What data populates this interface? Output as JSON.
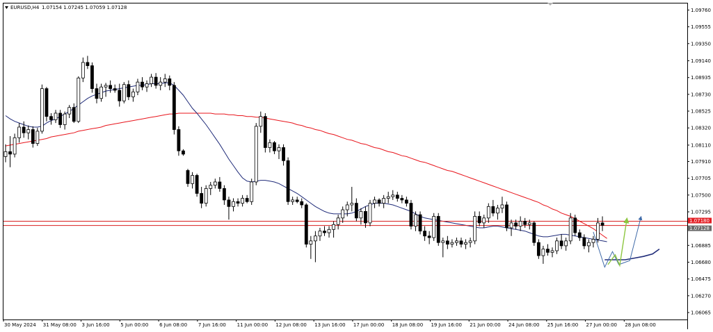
{
  "header": {
    "symbol": "EURUSD,H4",
    "ohlc": "1.07154 1.07245 1.07059 1.07128"
  },
  "colors": {
    "background": "#ffffff",
    "bull_body": "#ffffff",
    "bear_body": "#000000",
    "candle_outline": "#000000",
    "ma_fast": "#1e2a78",
    "ma_slow": "#e8141b",
    "horizontal_line": "#d81e1e",
    "projection_blue": "#3f6aa8",
    "projection_green": "#8dc63f",
    "tag_red": "#e31e24",
    "tag_gray": "#6b6b6b"
  },
  "chart_data": {
    "type": "candlestick",
    "title": "EURUSD,H4",
    "price_axis": {
      "ticks": [
        "1.09760",
        "1.09555",
        "1.09350",
        "1.09140",
        "1.08935",
        "1.08730",
        "1.08525",
        "1.08320",
        "1.08110",
        "1.07910",
        "1.07705",
        "1.07500",
        "1.07295",
        "1.07090",
        "1.06885",
        "1.06680",
        "1.06475",
        "1.06270",
        "1.06065"
      ],
      "range": [
        1.0598,
        1.0984
      ]
    },
    "time_axis": {
      "ticks": [
        "30 May 2024",
        "31 May 08:00",
        "3 Jun 16:00",
        "5 Jun 00:00",
        "6 Jun 08:00",
        "7 Jun 16:00",
        "11 Jun 00:00",
        "12 Jun 08:00",
        "13 Jun 16:00",
        "17 Jun 00:00",
        "18 Jun 08:00",
        "19 Jun 16:00",
        "21 Jun 00:00",
        "24 Jun 08:00",
        "25 Jun 16:00",
        "27 Jun 00:00",
        "28 Jun 08:00"
      ]
    },
    "price_tags": [
      {
        "value": "1.07180",
        "style": "red"
      },
      {
        "value": "1.07128",
        "style": "gray"
      }
    ],
    "horizontal_lines": [
      1.0718,
      1.07128
    ],
    "candles": [
      {
        "o": 1.0797,
        "h": 1.0812,
        "l": 1.079,
        "c": 1.0803
      },
      {
        "o": 1.0803,
        "h": 1.0822,
        "l": 1.0784,
        "c": 1.08
      },
      {
        "o": 1.08,
        "h": 1.0825,
        "l": 1.0796,
        "c": 1.082
      },
      {
        "o": 1.082,
        "h": 1.0838,
        "l": 1.0814,
        "c": 1.0833
      },
      {
        "o": 1.0833,
        "h": 1.084,
        "l": 1.082,
        "c": 1.0826
      },
      {
        "o": 1.0826,
        "h": 1.0835,
        "l": 1.0818,
        "c": 1.083
      },
      {
        "o": 1.083,
        "h": 1.0834,
        "l": 1.0808,
        "c": 1.0813
      },
      {
        "o": 1.0813,
        "h": 1.0832,
        "l": 1.081,
        "c": 1.0828
      },
      {
        "o": 1.0828,
        "h": 1.0885,
        "l": 1.0825,
        "c": 1.088
      },
      {
        "o": 1.088,
        "h": 1.0882,
        "l": 1.084,
        "c": 1.0846
      },
      {
        "o": 1.0846,
        "h": 1.085,
        "l": 1.0836,
        "c": 1.0842
      },
      {
        "o": 1.0842,
        "h": 1.0854,
        "l": 1.0838,
        "c": 1.085
      },
      {
        "o": 1.085,
        "h": 1.0854,
        "l": 1.0832,
        "c": 1.0836
      },
      {
        "o": 1.0836,
        "h": 1.0852,
        "l": 1.083,
        "c": 1.0849
      },
      {
        "o": 1.0849,
        "h": 1.086,
        "l": 1.0844,
        "c": 1.0857
      },
      {
        "o": 1.0857,
        "h": 1.0862,
        "l": 1.0838,
        "c": 1.084
      },
      {
        "o": 1.084,
        "h": 1.0895,
        "l": 1.0838,
        "c": 1.0893
      },
      {
        "o": 1.0893,
        "h": 1.0918,
        "l": 1.0888,
        "c": 1.0912
      },
      {
        "o": 1.0912,
        "h": 1.092,
        "l": 1.0904,
        "c": 1.0908
      },
      {
        "o": 1.0908,
        "h": 1.0912,
        "l": 1.0875,
        "c": 1.088
      },
      {
        "o": 1.088,
        "h": 1.0886,
        "l": 1.0862,
        "c": 1.0868
      },
      {
        "o": 1.0868,
        "h": 1.0886,
        "l": 1.0864,
        "c": 1.0882
      },
      {
        "o": 1.0882,
        "h": 1.0887,
        "l": 1.087,
        "c": 1.0884
      },
      {
        "o": 1.0884,
        "h": 1.089,
        "l": 1.0875,
        "c": 1.088
      },
      {
        "o": 1.088,
        "h": 1.0885,
        "l": 1.0875,
        "c": 1.0878
      },
      {
        "o": 1.0878,
        "h": 1.0886,
        "l": 1.0858,
        "c": 1.0865
      },
      {
        "o": 1.0865,
        "h": 1.0888,
        "l": 1.0862,
        "c": 1.0885
      },
      {
        "o": 1.0885,
        "h": 1.089,
        "l": 1.0866,
        "c": 1.087
      },
      {
        "o": 1.087,
        "h": 1.088,
        "l": 1.0864,
        "c": 1.0876
      },
      {
        "o": 1.0876,
        "h": 1.0892,
        "l": 1.0872,
        "c": 1.0888
      },
      {
        "o": 1.0888,
        "h": 1.0894,
        "l": 1.0878,
        "c": 1.0882
      },
      {
        "o": 1.0882,
        "h": 1.089,
        "l": 1.0876,
        "c": 1.0886
      },
      {
        "o": 1.0886,
        "h": 1.0898,
        "l": 1.0882,
        "c": 1.0894
      },
      {
        "o": 1.0894,
        "h": 1.0899,
        "l": 1.088,
        "c": 1.0884
      },
      {
        "o": 1.0884,
        "h": 1.0894,
        "l": 1.0878,
        "c": 1.0888
      },
      {
        "o": 1.0888,
        "h": 1.0898,
        "l": 1.0882,
        "c": 1.0892
      },
      {
        "o": 1.0892,
        "h": 1.0896,
        "l": 1.0878,
        "c": 1.0884
      },
      {
        "o": 1.0884,
        "h": 1.0888,
        "l": 1.0824,
        "c": 1.083
      },
      {
        "o": 1.083,
        "h": 1.0834,
        "l": 1.0798,
        "c": 1.0804
      },
      {
        "o": 1.0804,
        "h": 1.0806,
        "l": 1.0798,
        "c": 1.08
      },
      {
        "o": 1.078,
        "h": 1.0782,
        "l": 1.076,
        "c": 1.0764
      },
      {
        "o": 1.0764,
        "h": 1.0778,
        "l": 1.0758,
        "c": 1.0774
      },
      {
        "o": 1.0774,
        "h": 1.0776,
        "l": 1.0748,
        "c": 1.0752
      },
      {
        "o": 1.0752,
        "h": 1.076,
        "l": 1.0734,
        "c": 1.074
      },
      {
        "o": 1.074,
        "h": 1.0762,
        "l": 1.0736,
        "c": 1.0758
      },
      {
        "o": 1.0758,
        "h": 1.0766,
        "l": 1.075,
        "c": 1.0762
      },
      {
        "o": 1.0762,
        "h": 1.077,
        "l": 1.0758,
        "c": 1.0766
      },
      {
        "o": 1.0766,
        "h": 1.0772,
        "l": 1.0754,
        "c": 1.0758
      },
      {
        "o": 1.0758,
        "h": 1.0762,
        "l": 1.0738,
        "c": 1.0744
      },
      {
        "o": 1.0744,
        "h": 1.0748,
        "l": 1.072,
        "c": 1.0736
      },
      {
        "o": 1.0736,
        "h": 1.0746,
        "l": 1.073,
        "c": 1.0742
      },
      {
        "o": 1.0742,
        "h": 1.0746,
        "l": 1.0736,
        "c": 1.074
      },
      {
        "o": 1.074,
        "h": 1.075,
        "l": 1.0736,
        "c": 1.0746
      },
      {
        "o": 1.0746,
        "h": 1.075,
        "l": 1.074,
        "c": 1.0742
      },
      {
        "o": 1.0742,
        "h": 1.077,
        "l": 1.0738,
        "c": 1.0766
      },
      {
        "o": 1.0766,
        "h": 1.0838,
        "l": 1.0762,
        "c": 1.0834
      },
      {
        "o": 1.0834,
        "h": 1.0852,
        "l": 1.0826,
        "c": 1.0846
      },
      {
        "o": 1.0846,
        "h": 1.085,
        "l": 1.0802,
        "c": 1.0808
      },
      {
        "o": 1.0808,
        "h": 1.0818,
        "l": 1.0802,
        "c": 1.0814
      },
      {
        "o": 1.0814,
        "h": 1.0816,
        "l": 1.08,
        "c": 1.0804
      },
      {
        "o": 1.0804,
        "h": 1.0812,
        "l": 1.0794,
        "c": 1.0808
      },
      {
        "o": 1.0808,
        "h": 1.0812,
        "l": 1.0786,
        "c": 1.0792
      },
      {
        "o": 1.0792,
        "h": 1.0796,
        "l": 1.0738,
        "c": 1.0742
      },
      {
        "o": 1.0742,
        "h": 1.0748,
        "l": 1.0738,
        "c": 1.0744
      },
      {
        "o": 1.0744,
        "h": 1.0748,
        "l": 1.074,
        "c": 1.0742
      },
      {
        "o": 1.0742,
        "h": 1.0746,
        "l": 1.0734,
        "c": 1.0738
      },
      {
        "o": 1.0738,
        "h": 1.074,
        "l": 1.0686,
        "c": 1.069
      },
      {
        "o": 1.069,
        "h": 1.07,
        "l": 1.0672,
        "c": 1.0694
      },
      {
        "o": 1.0694,
        "h": 1.0706,
        "l": 1.0668,
        "c": 1.07
      },
      {
        "o": 1.07,
        "h": 1.071,
        "l": 1.0694,
        "c": 1.0706
      },
      {
        "o": 1.0706,
        "h": 1.0712,
        "l": 1.07,
        "c": 1.0704
      },
      {
        "o": 1.0704,
        "h": 1.0712,
        "l": 1.0698,
        "c": 1.0708
      },
      {
        "o": 1.0708,
        "h": 1.0718,
        "l": 1.0698,
        "c": 1.0714
      },
      {
        "o": 1.0714,
        "h": 1.0726,
        "l": 1.0708,
        "c": 1.0722
      },
      {
        "o": 1.0722,
        "h": 1.0736,
        "l": 1.0716,
        "c": 1.0732
      },
      {
        "o": 1.0732,
        "h": 1.0742,
        "l": 1.0724,
        "c": 1.0738
      },
      {
        "o": 1.0738,
        "h": 1.076,
        "l": 1.073,
        "c": 1.074
      },
      {
        "o": 1.074,
        "h": 1.0746,
        "l": 1.0718,
        "c": 1.0722
      },
      {
        "o": 1.0722,
        "h": 1.0734,
        "l": 1.0714,
        "c": 1.073
      },
      {
        "o": 1.073,
        "h": 1.0736,
        "l": 1.071,
        "c": 1.0716
      },
      {
        "o": 1.0716,
        "h": 1.0744,
        "l": 1.0712,
        "c": 1.074
      },
      {
        "o": 1.074,
        "h": 1.0748,
        "l": 1.0734,
        "c": 1.0744
      },
      {
        "o": 1.0744,
        "h": 1.0746,
        "l": 1.0736,
        "c": 1.074
      },
      {
        "o": 1.074,
        "h": 1.075,
        "l": 1.0734,
        "c": 1.0746
      },
      {
        "o": 1.0746,
        "h": 1.0754,
        "l": 1.074,
        "c": 1.0748
      },
      {
        "o": 1.0748,
        "h": 1.0756,
        "l": 1.0744,
        "c": 1.075
      },
      {
        "o": 1.075,
        "h": 1.0754,
        "l": 1.0742,
        "c": 1.0746
      },
      {
        "o": 1.0746,
        "h": 1.075,
        "l": 1.074,
        "c": 1.0744
      },
      {
        "o": 1.0744,
        "h": 1.0748,
        "l": 1.0736,
        "c": 1.074
      },
      {
        "o": 1.074,
        "h": 1.0744,
        "l": 1.0708,
        "c": 1.0712
      },
      {
        "o": 1.0712,
        "h": 1.073,
        "l": 1.0706,
        "c": 1.0726
      },
      {
        "o": 1.0726,
        "h": 1.073,
        "l": 1.0702,
        "c": 1.0706
      },
      {
        "o": 1.0706,
        "h": 1.0712,
        "l": 1.0694,
        "c": 1.07
      },
      {
        "o": 1.07,
        "h": 1.0706,
        "l": 1.069,
        "c": 1.0698
      },
      {
        "o": 1.0698,
        "h": 1.0728,
        "l": 1.0694,
        "c": 1.0724
      },
      {
        "o": 1.0724,
        "h": 1.0728,
        "l": 1.0688,
        "c": 1.0692
      },
      {
        "o": 1.0692,
        "h": 1.0698,
        "l": 1.0674,
        "c": 1.0694
      },
      {
        "o": 1.0694,
        "h": 1.07,
        "l": 1.0684,
        "c": 1.069
      },
      {
        "o": 1.069,
        "h": 1.0696,
        "l": 1.0686,
        "c": 1.0692
      },
      {
        "o": 1.0692,
        "h": 1.0698,
        "l": 1.0688,
        "c": 1.0694
      },
      {
        "o": 1.0694,
        "h": 1.0698,
        "l": 1.0686,
        "c": 1.069
      },
      {
        "o": 1.069,
        "h": 1.0696,
        "l": 1.0684,
        "c": 1.0692
      },
      {
        "o": 1.0692,
        "h": 1.0698,
        "l": 1.0686,
        "c": 1.0694
      },
      {
        "o": 1.0694,
        "h": 1.073,
        "l": 1.069,
        "c": 1.0724
      },
      {
        "o": 1.0724,
        "h": 1.073,
        "l": 1.0712,
        "c": 1.0716
      },
      {
        "o": 1.0716,
        "h": 1.0726,
        "l": 1.071,
        "c": 1.0722
      },
      {
        "o": 1.0722,
        "h": 1.074,
        "l": 1.0716,
        "c": 1.0736
      },
      {
        "o": 1.0736,
        "h": 1.0744,
        "l": 1.0724,
        "c": 1.0728
      },
      {
        "o": 1.0728,
        "h": 1.0738,
        "l": 1.072,
        "c": 1.0734
      },
      {
        "o": 1.0734,
        "h": 1.0748,
        "l": 1.0728,
        "c": 1.0738
      },
      {
        "o": 1.0738,
        "h": 1.0742,
        "l": 1.0706,
        "c": 1.071
      },
      {
        "o": 1.071,
        "h": 1.072,
        "l": 1.07,
        "c": 1.0716
      },
      {
        "o": 1.0716,
        "h": 1.072,
        "l": 1.0708,
        "c": 1.0712
      },
      {
        "o": 1.0712,
        "h": 1.0724,
        "l": 1.0706,
        "c": 1.0718
      },
      {
        "o": 1.0718,
        "h": 1.0722,
        "l": 1.071,
        "c": 1.0714
      },
      {
        "o": 1.0714,
        "h": 1.072,
        "l": 1.0708,
        "c": 1.0716
      },
      {
        "o": 1.0716,
        "h": 1.0718,
        "l": 1.0688,
        "c": 1.0692
      },
      {
        "o": 1.0692,
        "h": 1.0696,
        "l": 1.0672,
        "c": 1.0676
      },
      {
        "o": 1.0676,
        "h": 1.0688,
        "l": 1.0666,
        "c": 1.0684
      },
      {
        "o": 1.0684,
        "h": 1.069,
        "l": 1.0676,
        "c": 1.068
      },
      {
        "o": 1.068,
        "h": 1.0686,
        "l": 1.0674,
        "c": 1.0682
      },
      {
        "o": 1.0682,
        "h": 1.0698,
        "l": 1.0678,
        "c": 1.0694
      },
      {
        "o": 1.0694,
        "h": 1.0702,
        "l": 1.0684,
        "c": 1.0688
      },
      {
        "o": 1.0688,
        "h": 1.0698,
        "l": 1.0682,
        "c": 1.0694
      },
      {
        "o": 1.0694,
        "h": 1.0728,
        "l": 1.069,
        "c": 1.0722
      },
      {
        "o": 1.0722,
        "h": 1.0726,
        "l": 1.07,
        "c": 1.0704
      },
      {
        "o": 1.0704,
        "h": 1.0708,
        "l": 1.0694,
        "c": 1.0698
      },
      {
        "o": 1.0698,
        "h": 1.0702,
        "l": 1.0684,
        "c": 1.0688
      },
      {
        "o": 1.0688,
        "h": 1.0696,
        "l": 1.068,
        "c": 1.0692
      },
      {
        "o": 1.0692,
        "h": 1.07,
        "l": 1.0686,
        "c": 1.0696
      },
      {
        "o": 1.0696,
        "h": 1.0722,
        "l": 1.0692,
        "c": 1.0716
      },
      {
        "o": 1.0716,
        "h": 1.0724,
        "l": 1.0706,
        "c": 1.0713
      }
    ],
    "ma_fast": [
      1.0847,
      1.0843,
      1.084,
      1.0838,
      1.0836,
      1.0834,
      1.0833,
      1.0833,
      1.0834,
      1.0838,
      1.0841,
      1.0843,
      1.0846,
      1.0849,
      1.0852,
      1.0856,
      1.086,
      1.0864,
      1.0868,
      1.0871,
      1.0873,
      1.0875,
      1.0877,
      1.0878,
      1.0879,
      1.088,
      1.0881,
      1.0882,
      1.0883,
      1.0884,
      1.0884,
      1.0885,
      1.0886,
      1.0886,
      1.0886,
      1.0887,
      1.0887,
      1.0884,
      1.0878,
      1.0872,
      1.0864,
      1.0856,
      1.085,
      1.0843,
      1.0836,
      1.0828,
      1.082,
      1.0812,
      1.0803,
      1.0794,
      1.0786,
      1.0778,
      1.0771,
      1.0767,
      1.0766,
      1.0767,
      1.0768,
      1.0768,
      1.0767,
      1.0766,
      1.0764,
      1.0761,
      1.0758,
      1.0755,
      1.0752,
      1.0748,
      1.0744,
      1.074,
      1.0736,
      1.0733,
      1.073,
      1.0728,
      1.0727,
      1.0727,
      1.0727,
      1.0727,
      1.0728,
      1.073,
      1.0733,
      1.0736,
      1.0738,
      1.074,
      1.074,
      1.074,
      1.0739,
      1.0738,
      1.0736,
      1.0734,
      1.0732,
      1.073,
      1.0727,
      1.0724,
      1.0722,
      1.0721,
      1.072,
      1.0719,
      1.0718,
      1.0717,
      1.0716,
      1.0715,
      1.0714,
      1.0713,
      1.0712,
      1.0711,
      1.071,
      1.071,
      1.0711,
      1.0712,
      1.0712,
      1.0711,
      1.071,
      1.0709,
      1.0708,
      1.0707,
      1.0706,
      1.0704,
      1.0702,
      1.07,
      1.0699,
      1.0699,
      1.07,
      1.0701,
      1.0702,
      1.0702,
      1.0701,
      1.07,
      1.0699,
      1.0698,
      1.0697,
      1.0696,
      1.0695,
      1.0694,
      1.0693
    ],
    "ma_slow": [
      1.081,
      1.0811,
      1.0812,
      1.0813,
      1.0814,
      1.0815,
      1.0816,
      1.0817,
      1.0818,
      1.0819,
      1.0821,
      1.0822,
      1.0823,
      1.0824,
      1.0825,
      1.0826,
      1.0828,
      1.0829,
      1.083,
      1.0831,
      1.0832,
      1.0833,
      1.0835,
      1.0836,
      1.0837,
      1.0838,
      1.0839,
      1.084,
      1.0841,
      1.0842,
      1.0843,
      1.0844,
      1.0845,
      1.0846,
      1.0847,
      1.0848,
      1.0849,
      1.0849,
      1.085,
      1.085,
      1.085,
      1.085,
      1.085,
      1.085,
      1.085,
      1.085,
      1.0849,
      1.0849,
      1.0849,
      1.0848,
      1.0848,
      1.0847,
      1.0847,
      1.0846,
      1.0846,
      1.0845,
      1.0845,
      1.0844,
      1.0843,
      1.0842,
      1.0841,
      1.084,
      1.0839,
      1.0838,
      1.0836,
      1.0835,
      1.0833,
      1.0832,
      1.083,
      1.0829,
      1.0827,
      1.0825,
      1.0824,
      1.0822,
      1.082,
      1.0818,
      1.0817,
      1.0815,
      1.0813,
      1.0812,
      1.081,
      1.0808,
      1.0807,
      1.0805,
      1.0803,
      1.0802,
      1.08,
      1.0798,
      1.0797,
      1.0795,
      1.0793,
      1.0791,
      1.079,
      1.0788,
      1.0786,
      1.0784,
      1.0782,
      1.078,
      1.0779,
      1.0777,
      1.0775,
      1.0773,
      1.0771,
      1.0769,
      1.0767,
      1.0765,
      1.0763,
      1.0761,
      1.0759,
      1.0757,
      1.0755,
      1.0753,
      1.0751,
      1.0749,
      1.0747,
      1.0745,
      1.0743,
      1.0741,
      1.0738,
      1.0736,
      1.0733,
      1.0731,
      1.0728,
      1.0726,
      1.0724,
      1.0721,
      1.0718,
      1.0715,
      1.0712,
      1.0709,
      1.0705,
      1.0701,
      1.0697
    ],
    "projection": {
      "blue_path": [
        [
          129,
          1.0705
        ],
        [
          131.5,
          1.0662
        ],
        [
          133.2,
          1.0681
        ],
        [
          134.6,
          1.0665
        ],
        [
          137,
          1.067
        ],
        [
          139.5,
          1.0724
        ]
      ],
      "green_path": [
        [
          132.2,
          1.0665
        ],
        [
          133.8,
          1.0677
        ],
        [
          134.8,
          1.0664
        ],
        [
          136.4,
          1.0722
        ]
      ],
      "ma_extension": [
        [
          131.5,
          1.0671
        ],
        [
          136,
          1.0671
        ],
        [
          138,
          1.0673
        ],
        [
          140,
          1.0675
        ],
        [
          142,
          1.0678
        ],
        [
          143.5,
          1.0684
        ]
      ]
    }
  }
}
